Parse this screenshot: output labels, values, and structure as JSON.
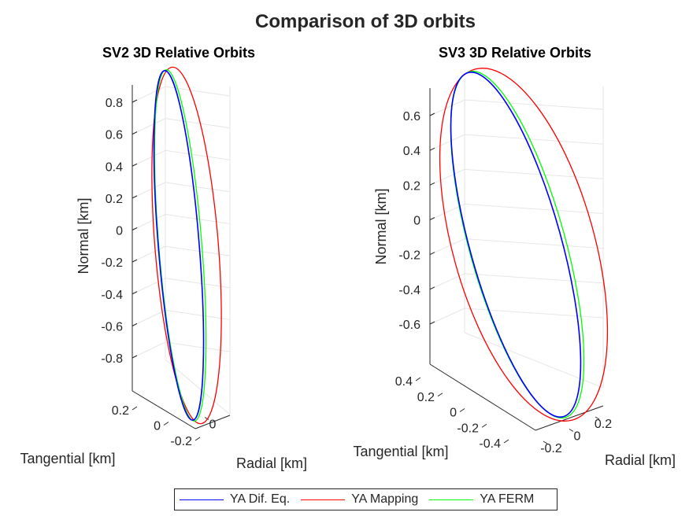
{
  "figure_title": "Comparison of 3D orbits",
  "legend": [
    {
      "label": "YA Dif. Eq.",
      "color": "#0000ff"
    },
    {
      "label": "YA Mapping",
      "color": "#ff0000"
    },
    {
      "label": "YA FERM",
      "color": "#00ff00"
    }
  ],
  "chart_data": [
    {
      "type": "line",
      "title": "SV2 3D Relative Orbits",
      "xlabel": "Radial [km]",
      "ylabel": "Tangential [km]",
      "zlabel": "Normal [km]",
      "z_ticks": [
        "0.8",
        "0.6",
        "0.4",
        "0.2",
        "0",
        "-0.2",
        "-0.4",
        "-0.6",
        "-0.8"
      ],
      "y_ticks": [
        "0.2",
        "0",
        "-0.2"
      ],
      "x_ticks": [
        "0"
      ],
      "grid": true,
      "series": [
        {
          "name": "YA Dif. Eq.",
          "color": "#0000ff"
        },
        {
          "name": "YA Mapping",
          "color": "#ff0000"
        },
        {
          "name": "YA FERM",
          "color": "#00ff00"
        }
      ]
    },
    {
      "type": "line",
      "title": "SV3 3D Relative Orbits",
      "xlabel": "Radial [km]",
      "ylabel": "Tangential [km]",
      "zlabel": "Normal [km]",
      "z_ticks": [
        "0.6",
        "0.4",
        "0.2",
        "0",
        "-0.2",
        "-0.4",
        "-0.6"
      ],
      "y_ticks": [
        "0.4",
        "0.2",
        "0",
        "-0.2",
        "-0.4"
      ],
      "x_ticks": [
        "-0.2",
        "0",
        "0.2"
      ],
      "grid": true,
      "series": [
        {
          "name": "YA Dif. Eq.",
          "color": "#0000ff"
        },
        {
          "name": "YA Mapping",
          "color": "#ff0000"
        },
        {
          "name": "YA FERM",
          "color": "#00ff00"
        }
      ]
    }
  ]
}
